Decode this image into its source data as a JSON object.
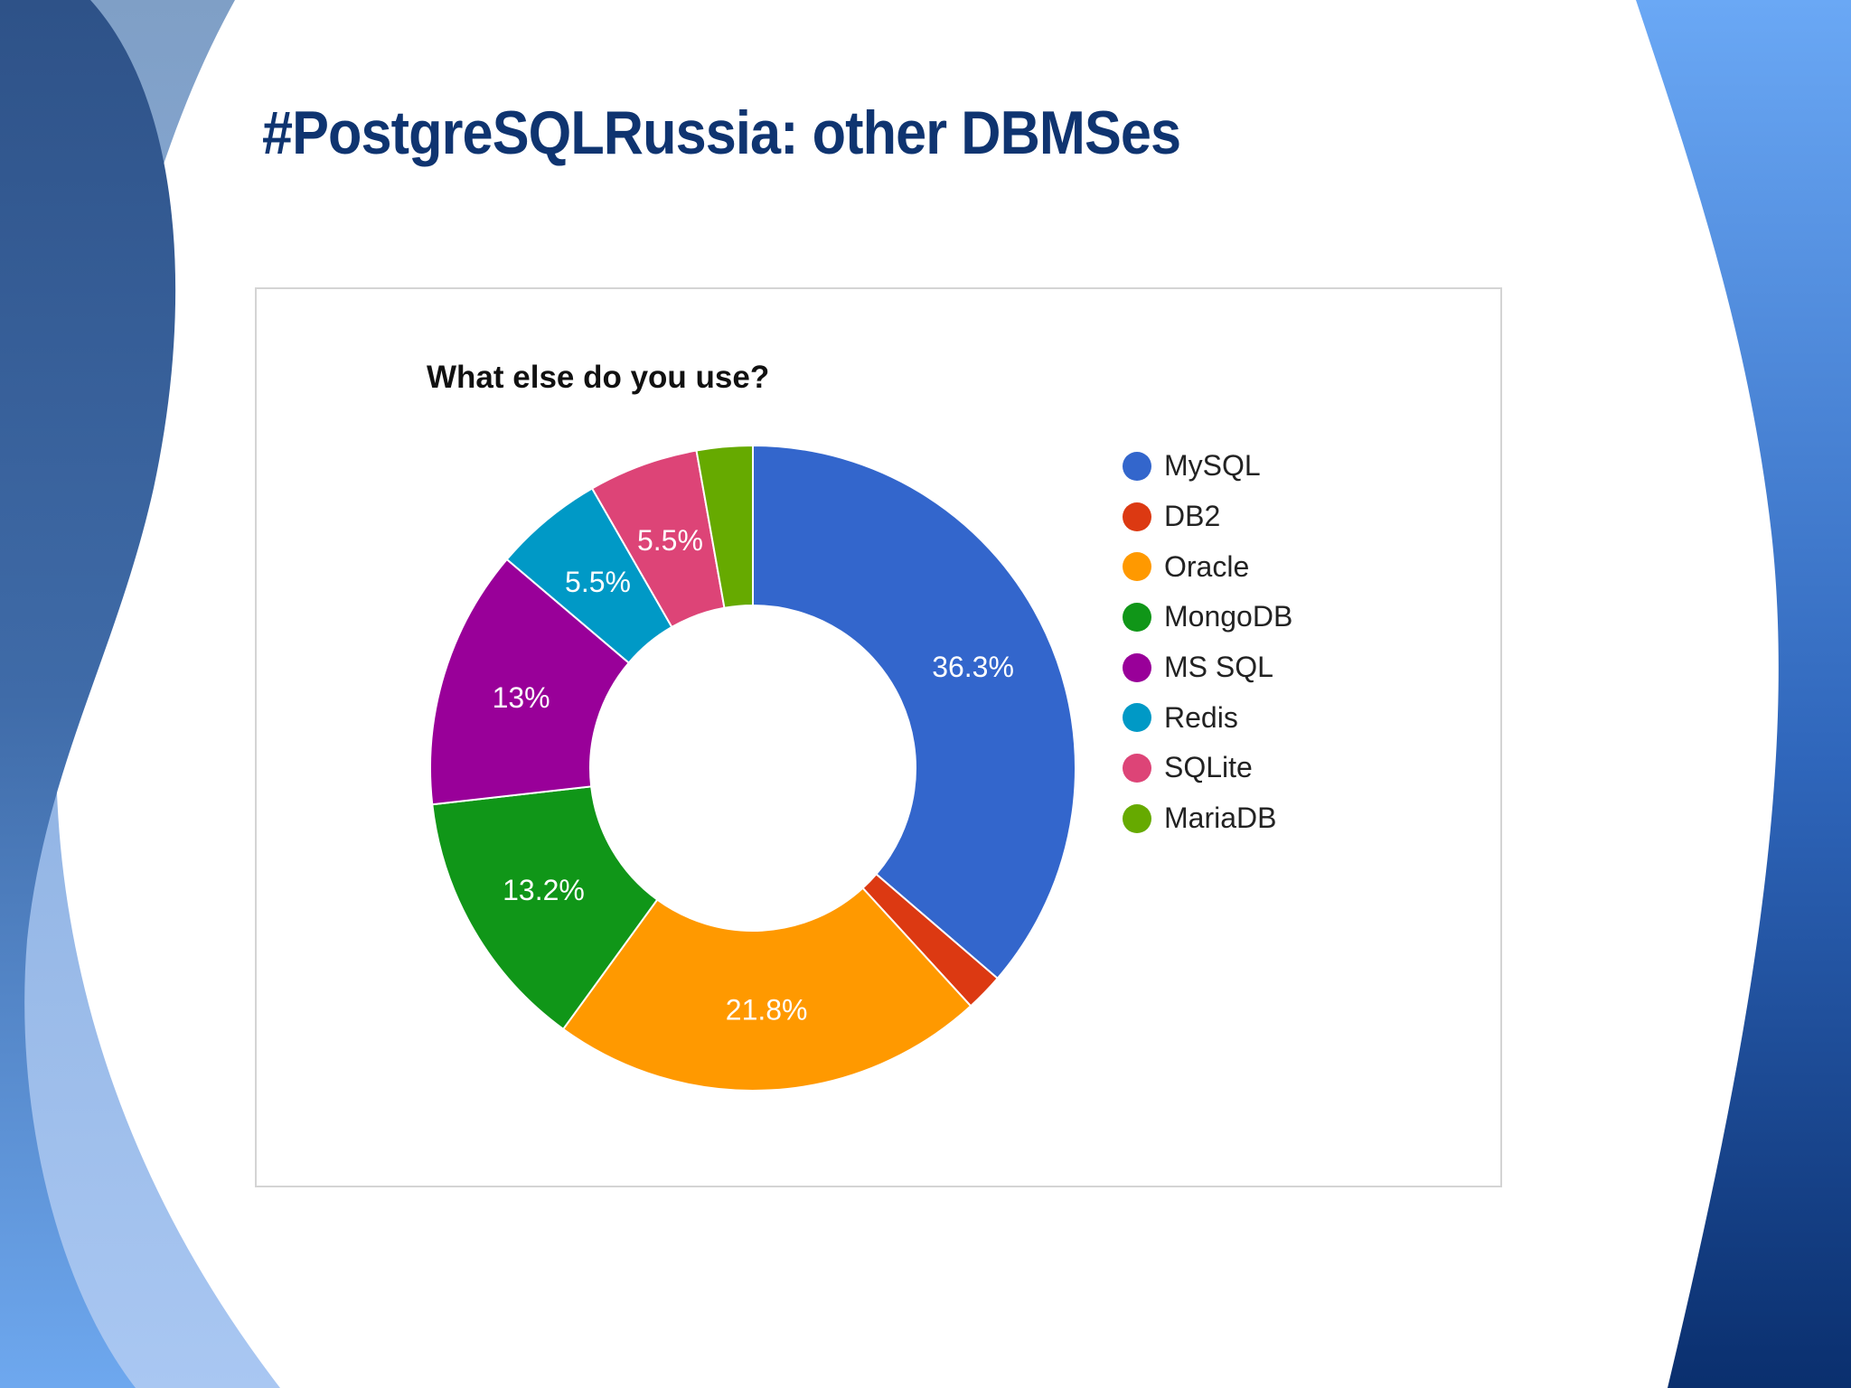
{
  "slide": {
    "title": "#PostgreSQLRussia: other DBMSes"
  },
  "colors": {
    "title": "#0f3470",
    "background_wave_dark": "#0f3470",
    "background_wave_light": "#6aa8f5"
  },
  "chart_data": {
    "type": "pie",
    "style": "donut",
    "title": "What else do you use?",
    "unit": "%",
    "legend_position": "right",
    "slices": [
      {
        "name": "MySQL",
        "value": 36.3,
        "label": "36.3%",
        "color": "#3366cc"
      },
      {
        "name": "DB2",
        "value": 1.9,
        "label": "",
        "color": "#dc3912"
      },
      {
        "name": "Oracle",
        "value": 21.8,
        "label": "21.8%",
        "color": "#ff9900"
      },
      {
        "name": "MongoDB",
        "value": 13.2,
        "label": "13.2%",
        "color": "#109618"
      },
      {
        "name": "MS SQL",
        "value": 13.0,
        "label": "13%",
        "color": "#990099"
      },
      {
        "name": "Redis",
        "value": 5.5,
        "label": "5.5%",
        "color": "#0099c6"
      },
      {
        "name": "SQLite",
        "value": 5.5,
        "label": "5.5%",
        "color": "#dd4477"
      },
      {
        "name": "MariaDB",
        "value": 2.8,
        "label": "",
        "color": "#66aa00"
      }
    ]
  }
}
